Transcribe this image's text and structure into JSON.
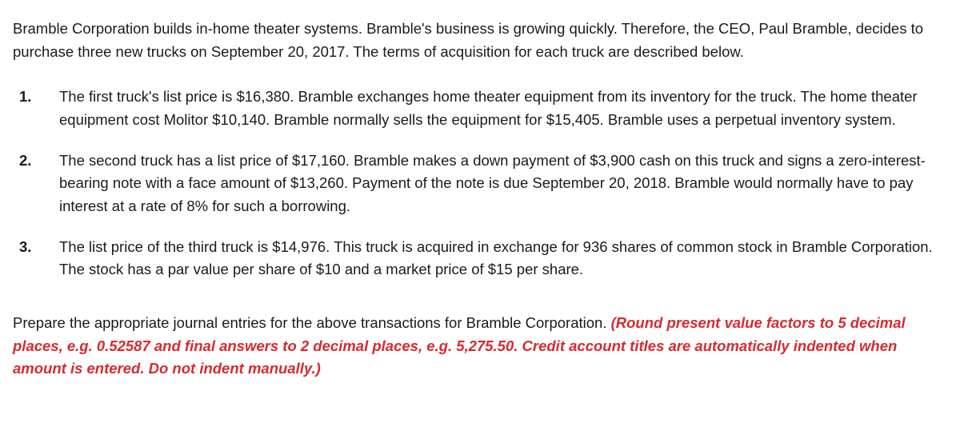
{
  "intro": {
    "text": "Bramble Corporation builds in-home theater systems. Bramble's business is growing quickly. Therefore, the CEO, Paul Bramble, decides to purchase three new trucks on September 20, 2017. The terms of acquisition for each truck are described below."
  },
  "items": [
    {
      "number": "1.",
      "text": "The first truck's list price is $16,380. Bramble exchanges home theater equipment from its inventory for the truck. The home theater equipment cost Molitor $10,140. Bramble normally sells the equipment for $15,405. Bramble uses a perpetual inventory system."
    },
    {
      "number": "2.",
      "text": "The second truck has a list price of $17,160. Bramble makes a down payment of $3,900 cash on this truck and signs a zero-interest-bearing note with a face amount of $13,260. Payment of the note is due September 20, 2018. Bramble would normally have to pay interest at a rate of 8% for such a borrowing."
    },
    {
      "number": "3.",
      "text": "The list price of the third truck is $14,976. This truck is acquired in exchange for 936 shares of common stock in Bramble Corporation. The stock has a par value per share of $10 and a market price of $15 per share."
    }
  ],
  "instruction": {
    "black_text": "Prepare the appropriate journal entries for the above transactions for Bramble Corporation. ",
    "red_text": "(Round present value factors to 5 decimal places, e.g. 0.52587 and final answers to 2 decimal places, e.g. 5,275.50. Credit account titles are automatically indented when amount is entered. Do not indent manually.)"
  },
  "colors": {
    "text": "#1a1a1a",
    "red": "#d9292e",
    "background": "#ffffff"
  }
}
